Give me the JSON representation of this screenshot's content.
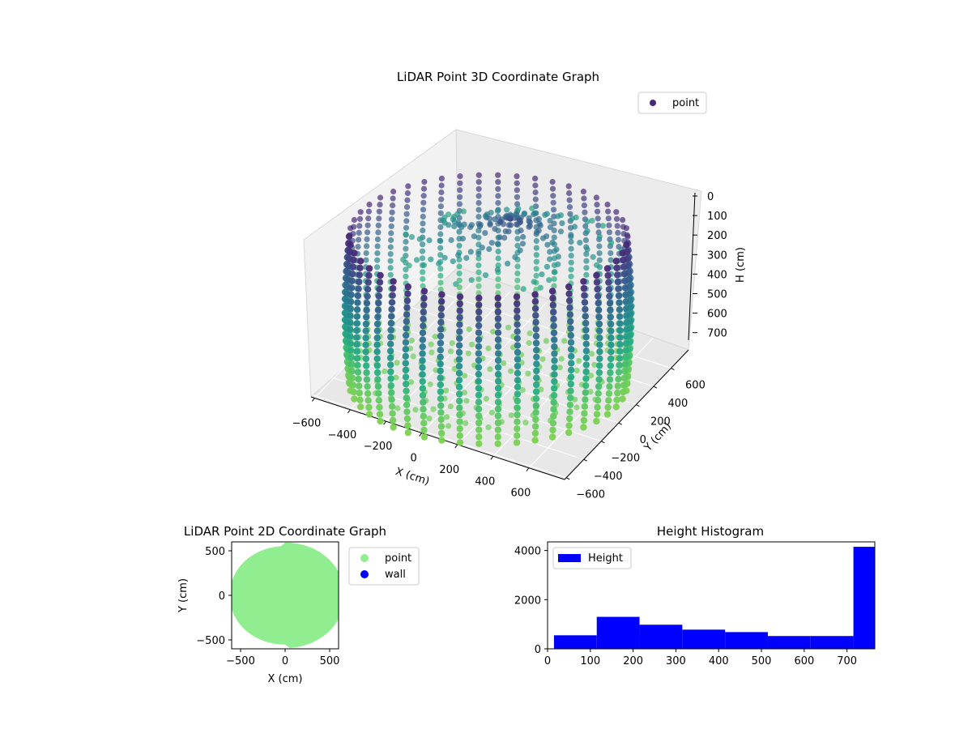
{
  "chart_data": [
    {
      "type": "scatter",
      "projection": "3d",
      "title": "LiDAR Point 3D Coordinate Graph",
      "xlabel": "X (cm)",
      "ylabel": "Y (cm)",
      "zlabel": "H (cm)",
      "xlim": [
        -600,
        600
      ],
      "ylim": [
        -600,
        600
      ],
      "zlim": [
        0,
        750
      ],
      "z_inverted": true,
      "xticks": [
        "−600",
        "−400",
        "−200",
        "0",
        "200",
        "400",
        "600"
      ],
      "yticks": [
        "−600",
        "−400",
        "−200",
        "0",
        "200",
        "400",
        "600"
      ],
      "zticks": [
        "0",
        "100",
        "200",
        "300",
        "400",
        "500",
        "600",
        "700"
      ],
      "legend": [
        "point"
      ],
      "legend_placement": "top-right",
      "colormap": "viridis",
      "series": [
        {
          "name": "point",
          "description_shape": "cylindrical wall radius ~600, height 0-760",
          "radius": 600,
          "height_range": [
            0,
            760
          ],
          "column_count": 46,
          "color": "#482878"
        }
      ],
      "grid": true
    },
    {
      "type": "scatter",
      "title": "LiDAR Point 2D Coordinate Graph",
      "xlabel": "X (cm)",
      "ylabel": "Y (cm)",
      "xlim": [
        -600,
        600
      ],
      "ylim": [
        -600,
        600
      ],
      "xticks": [
        "−500",
        "0",
        "500"
      ],
      "yticks": [
        "500",
        "0",
        "−500"
      ],
      "legend": [
        "point",
        "wall"
      ],
      "legend_placement": "outside-right",
      "series": [
        {
          "name": "point",
          "color": "#90ee90",
          "radius": 600
        },
        {
          "name": "wall",
          "color": "#0000ff"
        }
      ],
      "grid": false
    },
    {
      "type": "bar",
      "title": "Height Histogram",
      "xlabel": "",
      "ylabel": "",
      "xlim": [
        0,
        765
      ],
      "ylim": [
        0,
        4350
      ],
      "xticks": [
        "0",
        "100",
        "200",
        "300",
        "400",
        "500",
        "600",
        "700"
      ],
      "yticks": [
        "0",
        "2000",
        "4000"
      ],
      "legend": [
        "Height"
      ],
      "legend_placement": "top-left",
      "bins": [
        {
          "x0": 15,
          "x1": 115,
          "count": 550
        },
        {
          "x0": 115,
          "x1": 215,
          "count": 1300
        },
        {
          "x0": 215,
          "x1": 315,
          "count": 980
        },
        {
          "x0": 315,
          "x1": 415,
          "count": 780
        },
        {
          "x0": 415,
          "x1": 515,
          "count": 680
        },
        {
          "x0": 515,
          "x1": 615,
          "count": 520
        },
        {
          "x0": 615,
          "x1": 715,
          "count": 520
        },
        {
          "x0": 715,
          "x1": 765,
          "count": 4150
        }
      ],
      "series": [
        {
          "name": "Height",
          "color": "#0000ff"
        }
      ],
      "grid": false
    }
  ]
}
